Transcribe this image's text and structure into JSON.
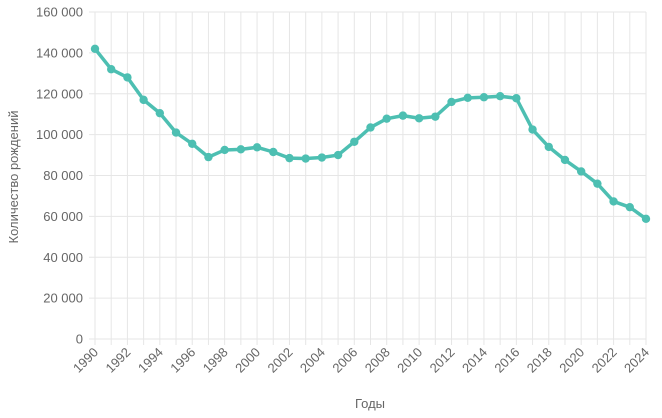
{
  "chart_data": {
    "type": "line",
    "xlabel": "Годы",
    "ylabel": "Количество рождений",
    "xlim": [
      1990,
      2024
    ],
    "ylim": [
      0,
      160000
    ],
    "x_ticks": [
      "1990",
      "1992",
      "1994",
      "1996",
      "1998",
      "2000",
      "2002",
      "2004",
      "2006",
      "2008",
      "2010",
      "2012",
      "2014",
      "2016",
      "2018",
      "2020",
      "2022",
      "2024"
    ],
    "y_ticks": [
      "0",
      "20 000",
      "40 000",
      "60 000",
      "80 000",
      "100 000",
      "120 000",
      "140 000",
      "160 000"
    ],
    "grid": true,
    "color": "#4dbfb2",
    "x": [
      1990,
      1991,
      1992,
      1993,
      1994,
      1995,
      1996,
      1997,
      1998,
      1999,
      2000,
      2001,
      2002,
      2003,
      2004,
      2005,
      2006,
      2007,
      2008,
      2009,
      2010,
      2011,
      2012,
      2013,
      2014,
      2015,
      2016,
      2017,
      2018,
      2019,
      2020,
      2021,
      2022,
      2023,
      2024
    ],
    "series": [
      {
        "values": [
          142000,
          132000,
          128000,
          117000,
          110500,
          101000,
          95500,
          89000,
          92500,
          92800,
          93800,
          91500,
          88500,
          88300,
          88800,
          90000,
          96500,
          103500,
          107800,
          109300,
          108000,
          108800,
          116000,
          118000,
          118300,
          118800,
          117800,
          102500,
          94000,
          87600,
          82000,
          76000,
          67300,
          64500,
          58800
        ]
      }
    ]
  }
}
